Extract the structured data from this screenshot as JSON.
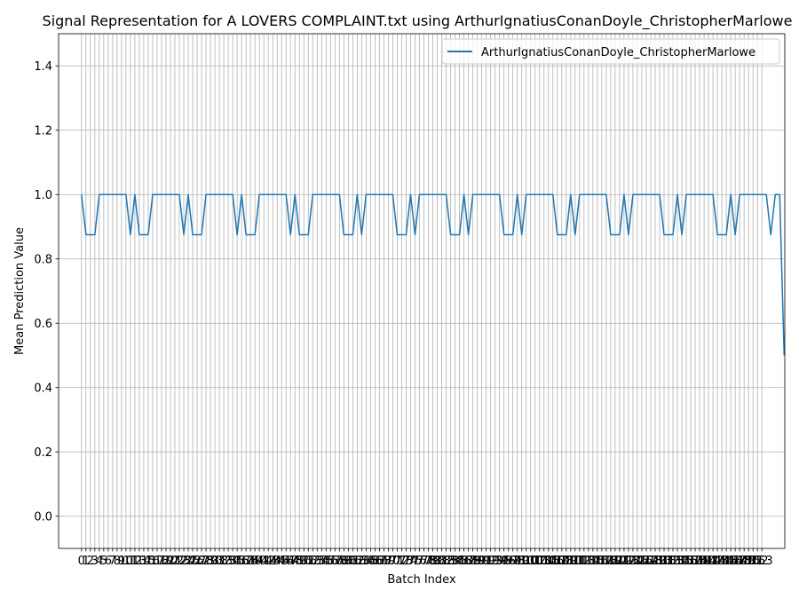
{
  "chart_data": {
    "type": "line",
    "title": "Signal Representation for A LOVERS COMPLAINT.txt using ArthurIgnatiusConanDoyle_ChristopherMarlowe",
    "xlabel": "Batch Index",
    "ylabel": "Mean Prediction Value",
    "xlim": [
      -5.15,
      158.15
    ],
    "ylim": [
      -0.1,
      1.5
    ],
    "yticks": [
      0.0,
      0.2,
      0.4,
      0.6,
      0.8,
      1.0,
      1.2,
      1.4
    ],
    "x_count": 154,
    "grid": true,
    "legend": "top-right",
    "series": [
      {
        "name": "ArthurIgnatiusConanDoyle_ChristopherMarlowe",
        "color": "#1f77b4",
        "values": [
          1.0,
          0.875,
          0.875,
          0.875,
          1.0,
          1.0,
          1.0,
          1.0,
          1.0,
          1.0,
          1.0,
          0.875,
          1.0,
          0.875,
          0.875,
          0.875,
          1.0,
          1.0,
          1.0,
          1.0,
          1.0,
          1.0,
          1.0,
          0.875,
          1.0,
          0.875,
          0.875,
          0.875,
          1.0,
          1.0,
          1.0,
          1.0,
          1.0,
          1.0,
          1.0,
          0.875,
          1.0,
          0.875,
          0.875,
          0.875,
          1.0,
          1.0,
          1.0,
          1.0,
          1.0,
          1.0,
          1.0,
          0.875,
          1.0,
          0.875,
          0.875,
          0.875,
          1.0,
          1.0,
          1.0,
          1.0,
          1.0,
          1.0,
          1.0,
          0.875,
          0.875,
          0.875,
          1.0,
          0.875,
          1.0,
          1.0,
          1.0,
          1.0,
          1.0,
          1.0,
          1.0,
          0.875,
          0.875,
          0.875,
          1.0,
          0.875,
          1.0,
          1.0,
          1.0,
          1.0,
          1.0,
          1.0,
          1.0,
          0.875,
          0.875,
          0.875,
          1.0,
          0.875,
          1.0,
          1.0,
          1.0,
          1.0,
          1.0,
          1.0,
          1.0,
          0.875,
          0.875,
          0.875,
          1.0,
          0.875,
          1.0,
          1.0,
          1.0,
          1.0,
          1.0,
          1.0,
          1.0,
          0.875,
          0.875,
          0.875,
          1.0,
          0.875,
          1.0,
          1.0,
          1.0,
          1.0,
          1.0,
          1.0,
          1.0,
          0.875,
          0.875,
          0.875,
          1.0,
          0.875,
          1.0,
          1.0,
          1.0,
          1.0,
          1.0,
          1.0,
          1.0,
          0.875,
          0.875,
          0.875,
          1.0,
          0.875,
          1.0,
          1.0,
          1.0,
          1.0,
          1.0,
          1.0,
          1.0,
          0.875,
          0.875,
          0.875,
          1.0,
          0.875,
          1.0,
          1.0,
          1.0,
          1.0,
          1.0,
          1.0,
          1.0,
          0.875,
          1.0,
          1.0,
          0.5
        ]
      }
    ]
  }
}
